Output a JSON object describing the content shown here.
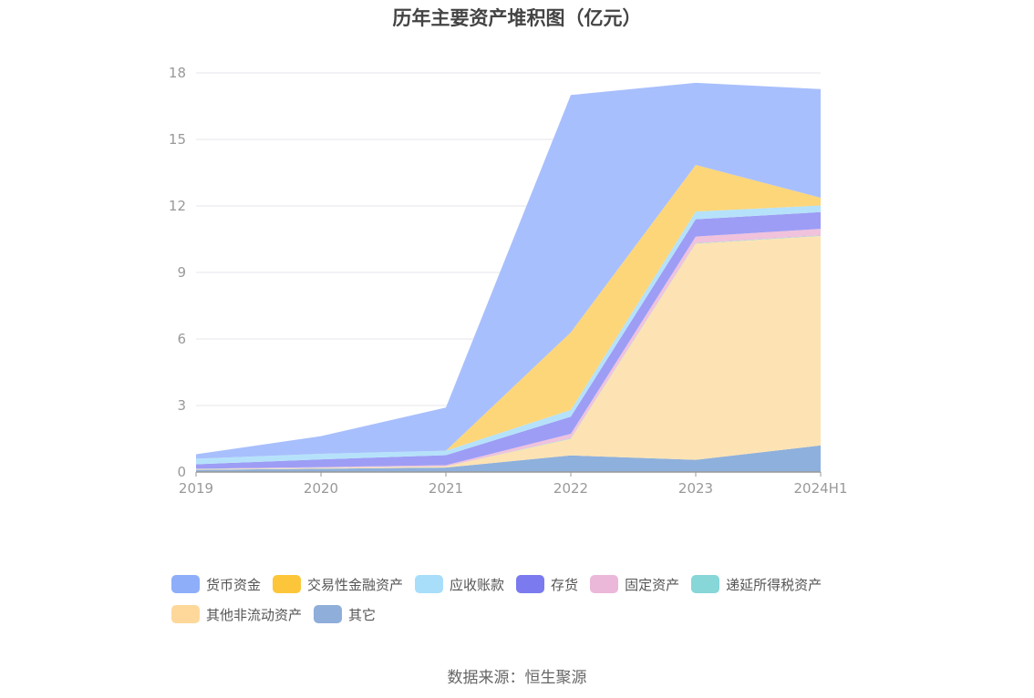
{
  "chart_data": {
    "type": "area",
    "stacked": true,
    "title": "历年主要资产堆积图（亿元）",
    "categories": [
      "2019",
      "2020",
      "2021",
      "2022",
      "2023",
      "2024H1"
    ],
    "ylim": [
      0,
      18
    ],
    "yticks": [
      0,
      3,
      6,
      9,
      12,
      15,
      18
    ],
    "grid": true,
    "legend_position": "bottom",
    "series": [
      {
        "name": "其它",
        "color": "#8eb0dc",
        "values": [
          0.1,
          0.15,
          0.2,
          0.75,
          0.55,
          1.2
        ]
      },
      {
        "name": "其他非流动资产",
        "color": "#fde3b3",
        "values": [
          0.02,
          0.03,
          0.05,
          0.75,
          9.75,
          9.45
        ]
      },
      {
        "name": "递延所得税资产",
        "color": "#8ed8d8",
        "values": [
          0.01,
          0.01,
          0.01,
          0.02,
          0.02,
          0.02
        ]
      },
      {
        "name": "固定资产",
        "color": "#f0c2dc",
        "values": [
          0.02,
          0.03,
          0.05,
          0.2,
          0.3,
          0.3
        ]
      },
      {
        "name": "存货",
        "color": "#9d9df5",
        "values": [
          0.2,
          0.35,
          0.45,
          0.78,
          0.78,
          0.75
        ]
      },
      {
        "name": "应收账款",
        "color": "#b5e2fa",
        "values": [
          0.25,
          0.25,
          0.2,
          0.3,
          0.35,
          0.3
        ]
      },
      {
        "name": "交易性金融资产",
        "color": "#fdd679",
        "values": [
          0,
          0,
          0,
          3.5,
          2.1,
          0.35
        ]
      },
      {
        "name": "货币资金",
        "color": "#a8bffd",
        "values": [
          0.2,
          0.8,
          1.95,
          10.7,
          3.7,
          4.9
        ]
      }
    ]
  },
  "legend_colors": {
    "货币资金": "#8eaefa",
    "交易性金融资产": "#fdc63a",
    "应收账款": "#a8defa",
    "存货": "#7b7bef",
    "固定资产": "#ebb8d9",
    "递延所得税资产": "#87d6d8",
    "其他非流动资产": "#fdd89a",
    "其它": "#8faed9"
  },
  "legend_order": [
    "货币资金",
    "交易性金融资产",
    "应收账款",
    "存货",
    "固定资产",
    "递延所得税资产",
    "其他非流动资产",
    "其它"
  ],
  "source": "数据来源：恒生聚源"
}
